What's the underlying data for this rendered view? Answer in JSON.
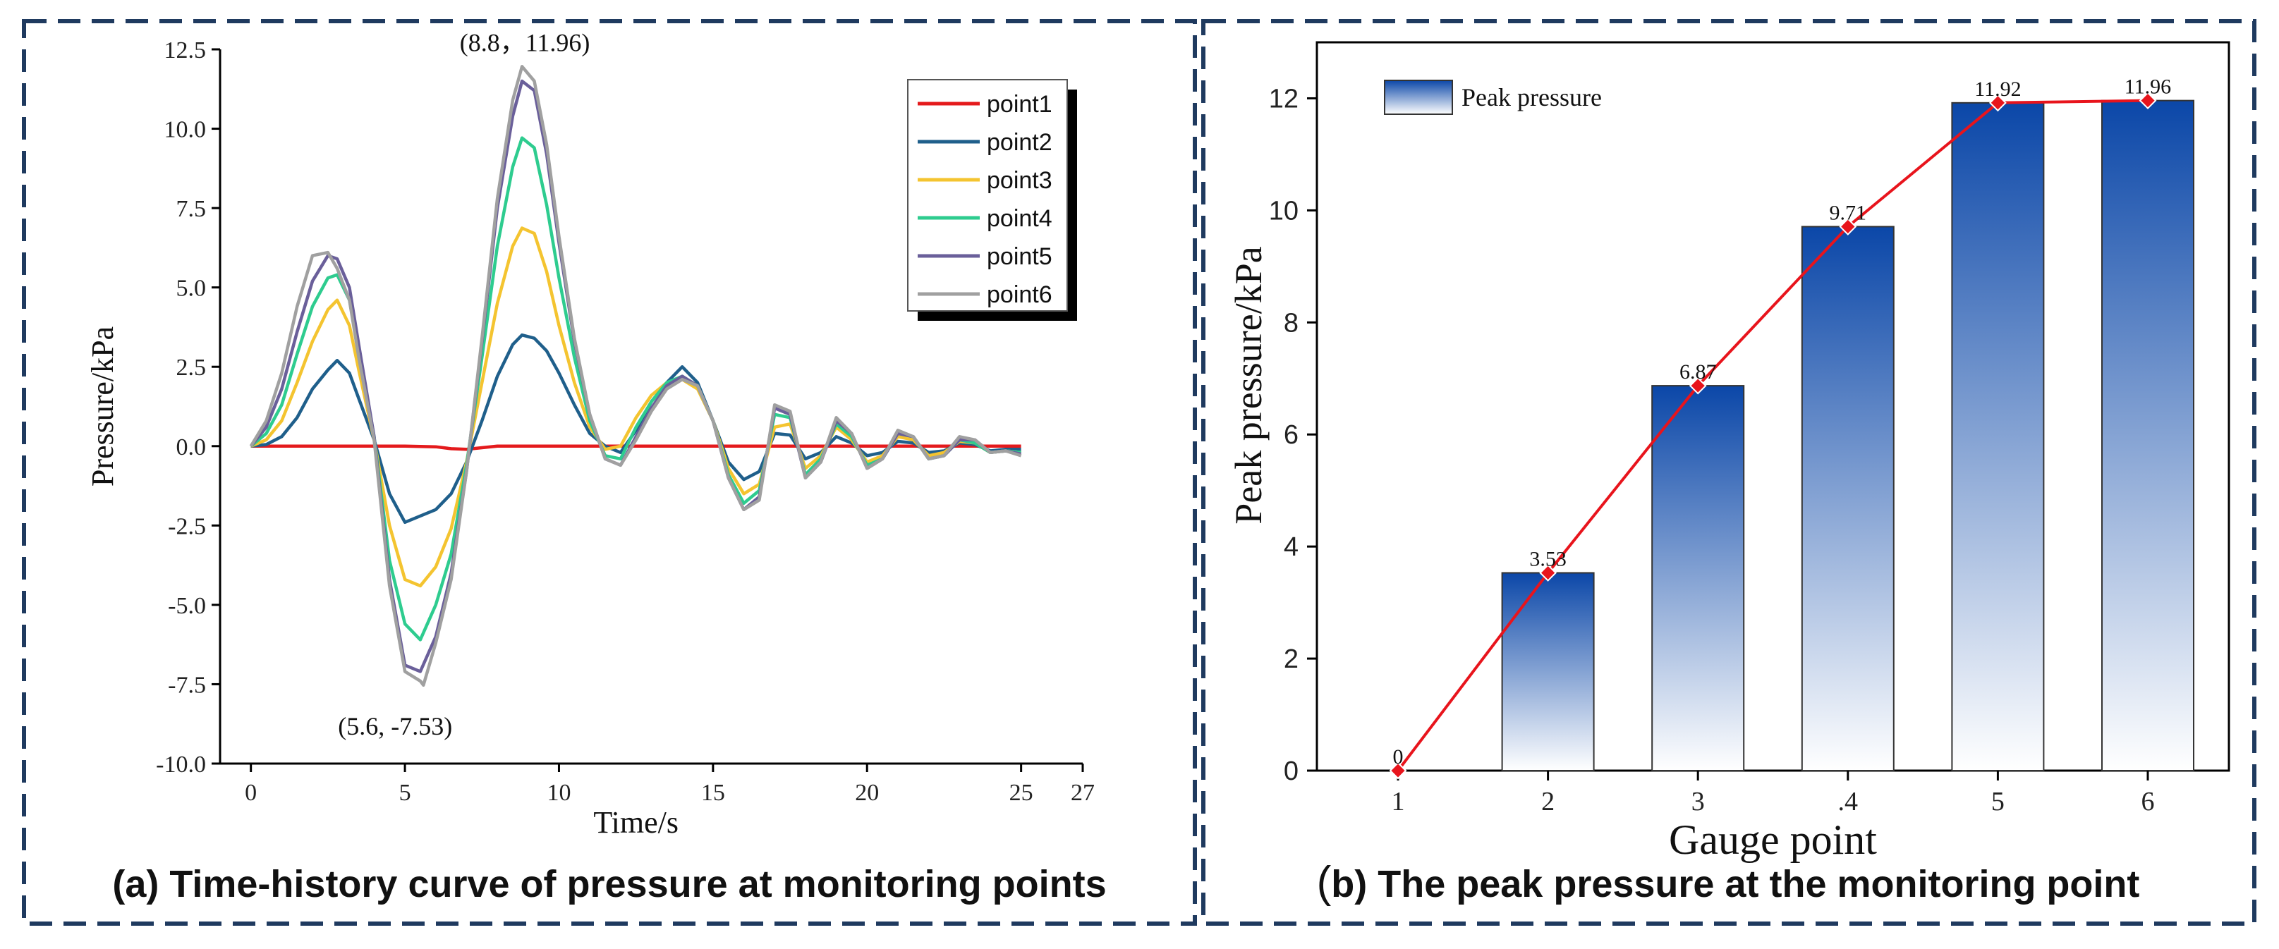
{
  "colors": {
    "border": "#1f3a5f",
    "point1": "#e41a1c",
    "point2": "#1f5f8b",
    "point3": "#f4c430",
    "point4": "#2ecc8f",
    "point5": "#6a5f9a",
    "point6": "#a0a0a0",
    "bar_top": "#0b47a8",
    "bar_bottom": "#ffffff",
    "peak_line": "#e8141c"
  },
  "panel_a": {
    "caption": "(a) Time-history curve of pressure at monitoring points"
  },
  "panel_b": {
    "caption": "(b) The peak pressure at the monitoring point",
    "caption_paren": "(",
    "caption_rest": "b) The peak pressure at the monitoring point"
  },
  "chart_data": [
    {
      "type": "line",
      "title": "Time-history curve of pressure at monitoring points",
      "xlabel": "Time/s",
      "ylabel": "Pressure/kPa",
      "xlim": [
        -1,
        27
      ],
      "ylim": [
        -10.0,
        12.5
      ],
      "xticks": [
        0,
        5,
        10,
        15,
        20,
        25,
        27
      ],
      "xtick_labels": [
        "0",
        "5",
        "10",
        "15",
        "20",
        "25",
        "27"
      ],
      "yticks": [
        -10.0,
        -7.5,
        -5.0,
        -2.5,
        0.0,
        2.5,
        5.0,
        7.5,
        10.0,
        12.5
      ],
      "ytick_labels": [
        "-10.0",
        "-7.5",
        "-5.0",
        "-2.5",
        "0.0",
        "2.5",
        "5.0",
        "7.5",
        "10.0",
        "12.5"
      ],
      "legend_position": "top-right",
      "annotations": [
        {
          "text": "(8.8，11.96)",
          "x": 8.8,
          "y": 11.96
        },
        {
          "text": "(5.6, -7.53)",
          "x": 5.6,
          "y": -7.53
        }
      ],
      "series": [
        {
          "name": "point1",
          "x": [
            0,
            1,
            2,
            3,
            4,
            5,
            6,
            6.5,
            7,
            8,
            9,
            10,
            11,
            12,
            14,
            16,
            17,
            18,
            19,
            20,
            21,
            22,
            23,
            24,
            25
          ],
          "values": [
            0,
            0,
            0,
            0,
            0,
            0,
            -0.02,
            -0.08,
            -0.1,
            0,
            0,
            0,
            0,
            0,
            0,
            0,
            0,
            0,
            0,
            0,
            0,
            0,
            0,
            0,
            0
          ]
        },
        {
          "name": "point2",
          "x": [
            0,
            0.5,
            1,
            1.5,
            2,
            2.5,
            2.8,
            3.2,
            3.5,
            4,
            4.5,
            5,
            5.5,
            6,
            6.5,
            7,
            7.5,
            8,
            8.5,
            8.8,
            9.2,
            9.6,
            10,
            10.5,
            11,
            11.5,
            12,
            12.5,
            13,
            13.5,
            14,
            14.5,
            15,
            15.5,
            16,
            16.5,
            17,
            17.5,
            18,
            18.5,
            19,
            19.5,
            20,
            20.5,
            21,
            21.5,
            22,
            22.5,
            23,
            23.5,
            24,
            24.5,
            25
          ],
          "values": [
            0,
            0.05,
            0.3,
            0.9,
            1.8,
            2.4,
            2.7,
            2.3,
            1.5,
            0.2,
            -1.5,
            -2.4,
            -2.2,
            -2.0,
            -1.5,
            -0.5,
            0.8,
            2.2,
            3.2,
            3.5,
            3.4,
            3.0,
            2.3,
            1.3,
            0.4,
            0,
            -0.2,
            0.5,
            1.4,
            2.0,
            2.5,
            2.0,
            0.8,
            -0.5,
            -1.05,
            -0.8,
            0.4,
            0.35,
            -0.4,
            -0.2,
            0.3,
            0.1,
            -0.3,
            -0.2,
            0.15,
            0.1,
            -0.2,
            -0.15,
            0.1,
            0.05,
            -0.15,
            -0.1,
            -0.1
          ]
        },
        {
          "name": "point3",
          "x": [
            0,
            0.5,
            1,
            1.5,
            2,
            2.5,
            2.8,
            3.2,
            3.5,
            4,
            4.5,
            5,
            5.5,
            6,
            6.5,
            7,
            7.5,
            8,
            8.5,
            8.8,
            9.2,
            9.6,
            10,
            10.5,
            11,
            11.5,
            12,
            12.5,
            13,
            13.5,
            14,
            14.5,
            15,
            15.5,
            16,
            16.5,
            17,
            17.5,
            18,
            18.5,
            19,
            19.5,
            20,
            20.5,
            21,
            21.5,
            22,
            22.5,
            23,
            23.5,
            24,
            24.5,
            25
          ],
          "values": [
            0,
            0.2,
            0.8,
            2.0,
            3.3,
            4.3,
            4.6,
            3.8,
            2.4,
            0.2,
            -2.5,
            -4.2,
            -4.4,
            -3.8,
            -2.6,
            -0.5,
            2.0,
            4.5,
            6.3,
            6.87,
            6.7,
            5.5,
            3.8,
            2.0,
            0.6,
            -0.1,
            0.0,
            0.9,
            1.6,
            2.0,
            2.1,
            1.8,
            0.8,
            -0.7,
            -1.5,
            -1.2,
            0.6,
            0.7,
            -0.7,
            -0.3,
            0.6,
            0.2,
            -0.5,
            -0.3,
            0.3,
            0.2,
            -0.3,
            -0.2,
            0.15,
            0.1,
            -0.2,
            -0.15,
            -0.2
          ]
        },
        {
          "name": "point4",
          "x": [
            0,
            0.5,
            1,
            1.5,
            2,
            2.5,
            2.8,
            3.2,
            3.5,
            4,
            4.5,
            5,
            5.5,
            6,
            6.5,
            7,
            7.5,
            8,
            8.5,
            8.8,
            9.2,
            9.6,
            10,
            10.5,
            11,
            11.5,
            12,
            12.5,
            13,
            13.5,
            14,
            14.5,
            15,
            15.5,
            16,
            16.5,
            17,
            17.5,
            18,
            18.5,
            19,
            19.5,
            20,
            20.5,
            21,
            21.5,
            22,
            22.5,
            23,
            23.5,
            24,
            24.5,
            25
          ],
          "values": [
            0,
            0.4,
            1.3,
            2.9,
            4.4,
            5.3,
            5.4,
            4.6,
            3.0,
            0.3,
            -3.6,
            -5.6,
            -6.1,
            -5.0,
            -3.4,
            -0.6,
            2.8,
            6.3,
            8.8,
            9.71,
            9.4,
            7.6,
            5.3,
            2.8,
            0.8,
            -0.3,
            -0.4,
            0.6,
            1.4,
            2.0,
            2.2,
            1.9,
            0.8,
            -0.9,
            -1.8,
            -1.4,
            1.0,
            0.9,
            -0.9,
            -0.4,
            0.7,
            0.3,
            -0.6,
            -0.4,
            0.4,
            0.3,
            -0.4,
            -0.3,
            0.2,
            0.1,
            -0.2,
            -0.15,
            -0.2
          ]
        },
        {
          "name": "point5",
          "x": [
            0,
            0.5,
            1,
            1.5,
            2,
            2.5,
            2.8,
            3.2,
            3.5,
            4,
            4.5,
            5,
            5.5,
            6,
            6.5,
            7,
            7.5,
            8,
            8.5,
            8.8,
            9.2,
            9.6,
            10,
            10.5,
            11,
            11.5,
            12,
            12.5,
            13,
            13.5,
            14,
            14.5,
            15,
            15.5,
            16,
            16.5,
            17,
            17.5,
            18,
            18.5,
            19,
            19.5,
            20,
            20.5,
            21,
            21.5,
            22,
            22.5,
            23,
            23.5,
            24,
            24.5,
            25
          ],
          "values": [
            0,
            0.6,
            1.8,
            3.6,
            5.2,
            6.0,
            5.9,
            5.0,
            3.2,
            0.3,
            -4.2,
            -6.9,
            -7.1,
            -6.0,
            -4.0,
            -0.8,
            3.3,
            7.5,
            10.4,
            11.5,
            11.2,
            9.2,
            6.4,
            3.3,
            1.0,
            -0.4,
            -0.6,
            0.3,
            1.2,
            1.9,
            2.2,
            1.9,
            0.8,
            -1.0,
            -2.0,
            -1.6,
            1.2,
            1.0,
            -1.0,
            -0.5,
            0.8,
            0.4,
            -0.7,
            -0.4,
            0.4,
            0.3,
            -0.4,
            -0.3,
            0.2,
            0.2,
            -0.2,
            -0.15,
            -0.25
          ]
        },
        {
          "name": "point6",
          "x": [
            0,
            0.5,
            1,
            1.5,
            2,
            2.5,
            2.8,
            3.2,
            3.5,
            4,
            4.5,
            5,
            5.5,
            5.6,
            6,
            6.5,
            7,
            7.5,
            8,
            8.5,
            8.8,
            9.2,
            9.6,
            10,
            10.5,
            11,
            11.5,
            12,
            12.5,
            13,
            13.5,
            14,
            14.5,
            15,
            15.5,
            16,
            16.5,
            17,
            17.5,
            18,
            18.5,
            19,
            19.5,
            20,
            20.5,
            21,
            21.5,
            22,
            22.5,
            23,
            23.5,
            24,
            24.5,
            25
          ],
          "values": [
            0,
            0.8,
            2.3,
            4.4,
            6.0,
            6.1,
            5.6,
            4.6,
            2.8,
            0.2,
            -4.4,
            -7.1,
            -7.4,
            -7.53,
            -6.2,
            -4.2,
            -0.8,
            3.4,
            7.8,
            10.9,
            11.96,
            11.5,
            9.5,
            6.6,
            3.4,
            1.0,
            -0.4,
            -0.6,
            0.2,
            1.1,
            1.8,
            2.1,
            1.9,
            0.8,
            -1.0,
            -2.0,
            -1.7,
            1.3,
            1.1,
            -1.0,
            -0.5,
            0.9,
            0.4,
            -0.7,
            -0.4,
            0.5,
            0.3,
            -0.4,
            -0.3,
            0.3,
            0.2,
            -0.2,
            -0.15,
            -0.3
          ]
        }
      ]
    },
    {
      "type": "bar",
      "title": "The peak pressure at the monitoring point",
      "xlabel": "Gauge point",
      "ylabel": "Peak pressure/kPa",
      "categories": [
        "1",
        "2",
        "3",
        ".4",
        "5",
        "6"
      ],
      "values": [
        0,
        3.53,
        6.87,
        9.71,
        11.92,
        11.96
      ],
      "value_labels": [
        "0",
        "3.53",
        "6.87",
        "9.71",
        "11.92",
        "11.96"
      ],
      "ylim": [
        0,
        13
      ],
      "yticks": [
        0,
        2,
        4,
        6,
        8,
        10,
        12
      ],
      "ytick_labels": [
        "0",
        "2",
        "4",
        "6",
        "8",
        "10",
        "12"
      ],
      "legend": [
        "Peak pressure"
      ],
      "legend_position": "top-left",
      "line_overlay": {
        "name": "Peak pressure trend",
        "values": [
          0,
          3.53,
          6.87,
          9.71,
          11.92,
          11.96
        ]
      }
    }
  ]
}
